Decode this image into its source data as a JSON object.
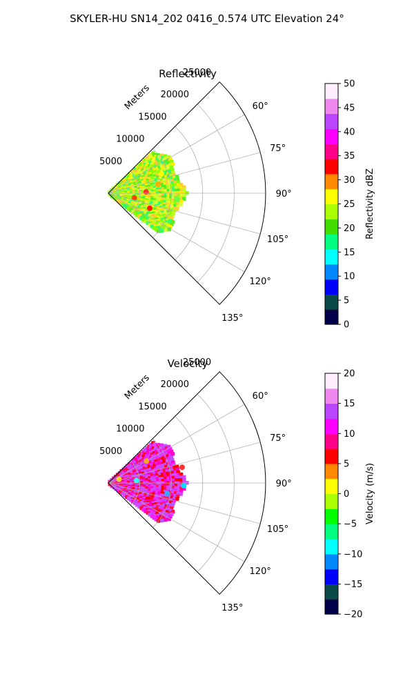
{
  "figure": {
    "suptitle": "SKYLER-HU  SN14_202  0416_0.574 UTC Elevation 24°"
  },
  "chart_data": [
    {
      "type": "polar-sector",
      "title": "Reflectivity",
      "radial_label": "Meters",
      "r_ticks": [
        "5000",
        "10000",
        "15000",
        "20000",
        "25000"
      ],
      "r_values": [
        5000,
        10000,
        15000,
        20000,
        25000
      ],
      "rlim": [
        0,
        25000
      ],
      "theta_ticks": [
        "60°",
        "75°",
        "90°",
        "105°",
        "120°",
        "135°"
      ],
      "theta_values": [
        60,
        75,
        90,
        105,
        120,
        135
      ],
      "theta_range_deg": [
        45,
        135
      ],
      "grid": true,
      "colorbar": {
        "label": "Reflectivity dBZ",
        "ticks": [
          "0",
          "5",
          "10",
          "15",
          "20",
          "25",
          "30",
          "35",
          "40",
          "45",
          "50"
        ],
        "range": [
          0,
          50
        ],
        "colors": [
          "#00004a",
          "#0a4a4a",
          "#0000ff",
          "#0088ff",
          "#00ffff",
          "#00ff80",
          "#44dd00",
          "#aaff00",
          "#ffff00",
          "#ff8800",
          "#ff0000",
          "#ff0088",
          "#ff00ff",
          "#bb44ff",
          "#ee88ee",
          "#ffeeff"
        ]
      }
    },
    {
      "type": "polar-sector",
      "title": "Velocity",
      "radial_label": "Meters",
      "r_ticks": [
        "5000",
        "10000",
        "15000",
        "20000",
        "25000"
      ],
      "r_values": [
        5000,
        10000,
        15000,
        20000,
        25000
      ],
      "rlim": [
        0,
        25000
      ],
      "theta_ticks": [
        "60°",
        "75°",
        "90°",
        "105°",
        "120°",
        "135°"
      ],
      "theta_values": [
        60,
        75,
        90,
        105,
        120,
        135
      ],
      "theta_range_deg": [
        45,
        135
      ],
      "grid": true,
      "colorbar": {
        "label": "Velocity (m/s)",
        "ticks": [
          "−20",
          "−15",
          "−10",
          "−5",
          "0",
          "5",
          "10",
          "15",
          "20"
        ],
        "range": [
          -20,
          20
        ],
        "colors": [
          "#00004a",
          "#0a4a4a",
          "#0000ff",
          "#0088ff",
          "#00ffff",
          "#00ff80",
          "#00ff00",
          "#aaff00",
          "#ffff00",
          "#ff8800",
          "#ff0000",
          "#ff0088",
          "#ff00ff",
          "#bb44ff",
          "#ee88ee",
          "#ffeeff"
        ]
      }
    }
  ]
}
